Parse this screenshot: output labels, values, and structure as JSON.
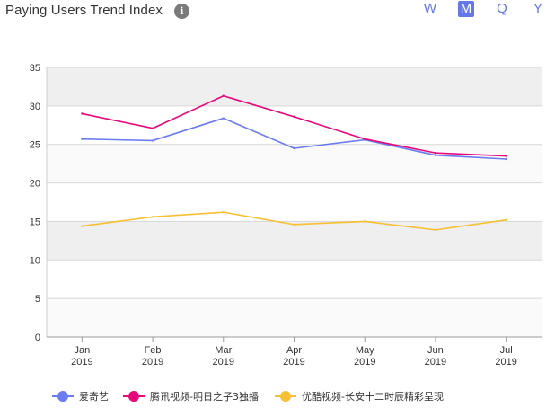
{
  "header": {
    "title": "Paying Users Trend Index",
    "info_icon": "info-icon",
    "periods": [
      "W",
      "M",
      "Q",
      "Y"
    ],
    "active_period": "M"
  },
  "colors": {
    "accent": "#6678e6",
    "band": "#efefef",
    "grid": "#d7d7d7"
  },
  "chart_data": {
    "type": "line",
    "categories": [
      [
        "Jan",
        "2019"
      ],
      [
        "Feb",
        "2019"
      ],
      [
        "Mar",
        "2019"
      ],
      [
        "Apr",
        "2019"
      ],
      [
        "May",
        "2019"
      ],
      [
        "Jun",
        "2019"
      ],
      [
        "Jul",
        "2019"
      ]
    ],
    "ylim": [
      0,
      35
    ],
    "yticks": [
      0,
      5,
      10,
      15,
      20,
      25,
      30,
      35
    ],
    "grid": true,
    "alternating_bands": true,
    "legend_position": "bottom",
    "series": [
      {
        "name": "爱奇艺",
        "color": "#6b7bf0",
        "values": [
          25.7,
          25.5,
          28.4,
          24.5,
          25.6,
          23.6,
          23.1
        ]
      },
      {
        "name": "腾讯视频-明日之子3独播",
        "color": "#e8087a",
        "values": [
          29.0,
          27.1,
          31.3,
          28.6,
          25.7,
          23.9,
          23.5
        ]
      },
      {
        "name": "优酷视频-长安十二时辰精彩呈现",
        "color": "#f5c033",
        "values": [
          14.4,
          15.6,
          16.2,
          14.6,
          15.0,
          13.9,
          15.2
        ]
      }
    ]
  }
}
